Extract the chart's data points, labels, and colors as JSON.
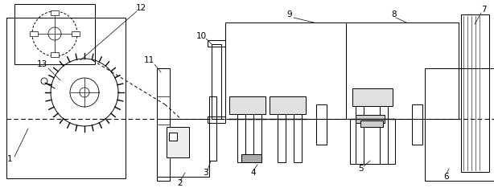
{
  "bg_color": "#ffffff",
  "line_color": "#000000",
  "fig_width": 6.14,
  "fig_height": 2.39,
  "dpi": 100
}
